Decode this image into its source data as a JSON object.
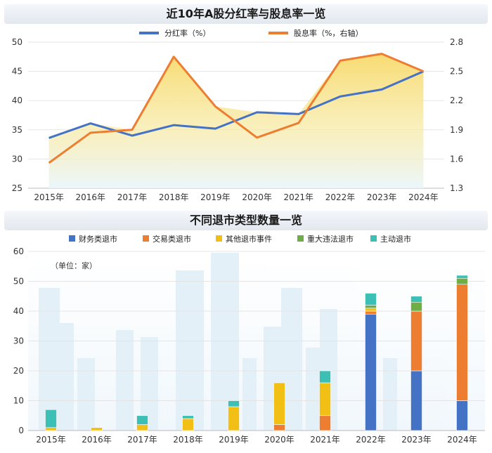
{
  "chart_data": [
    {
      "type": "line",
      "title": "近10年A股分红率与股息率一览",
      "categories": [
        "2015年",
        "2016年",
        "2017年",
        "2018年",
        "2019年",
        "2020年",
        "2021年",
        "2022年",
        "2023年",
        "2024年"
      ],
      "series": [
        {
          "name": "分红率（%）",
          "axis": "left",
          "color": "#4472c4",
          "values": [
            33.6,
            36.1,
            34.0,
            35.8,
            35.2,
            38.0,
            37.7,
            40.7,
            41.9,
            45.0
          ]
        },
        {
          "name": "股息率（%，右轴）",
          "axis": "right",
          "color": "#ed7d31",
          "values": [
            1.56,
            1.87,
            1.9,
            2.65,
            2.14,
            1.82,
            1.97,
            2.61,
            2.68,
            2.5
          ]
        }
      ],
      "left_axis": {
        "ylim": [
          25,
          50
        ],
        "ticks": [
          "25",
          "30",
          "35",
          "40",
          "45",
          "50"
        ]
      },
      "right_axis": {
        "ylim": [
          1.3,
          2.8
        ],
        "ticks": [
          "1.3",
          "1.6",
          "1.9",
          "2.2",
          "2.5",
          "2.8"
        ]
      },
      "legend_position": "top-center",
      "colors": {
        "fill_top": "#f7d96a",
        "fill_bottom": "#eaf6fc"
      }
    },
    {
      "type": "bar",
      "stacked": true,
      "title": "不同退市类型数量一览",
      "note": "（单位：家）",
      "categories": [
        "2015年",
        "2016年",
        "2017年",
        "2018年",
        "2019年",
        "2020年",
        "2021年",
        "2022年",
        "2023年",
        "2024年"
      ],
      "series": [
        {
          "name": "财务类退市",
          "color": "#4472c4",
          "values": [
            0,
            0,
            0,
            0,
            0,
            0,
            0,
            39,
            20,
            10
          ]
        },
        {
          "name": "交易类退市",
          "color": "#ed7d31",
          "values": [
            0,
            0,
            0,
            0,
            0,
            2,
            5,
            1,
            20,
            39
          ]
        },
        {
          "name": "其他退市事件",
          "color": "#f2c014",
          "values": [
            1,
            1,
            2,
            4,
            8,
            14,
            11,
            1,
            0,
            0
          ]
        },
        {
          "name": "重大违法退市",
          "color": "#70ad47",
          "values": [
            0,
            0,
            0,
            0,
            0,
            0,
            0,
            1,
            3,
            2
          ]
        },
        {
          "name": "主动退市",
          "color": "#3cbfb4",
          "values": [
            6,
            0,
            3,
            1,
            2,
            0,
            4,
            4,
            2,
            1
          ]
        }
      ],
      "ylim": [
        0,
        60
      ],
      "ticks": [
        "0",
        "10",
        "20",
        "30",
        "40",
        "50",
        "60"
      ],
      "legend_position": "top-center"
    }
  ]
}
